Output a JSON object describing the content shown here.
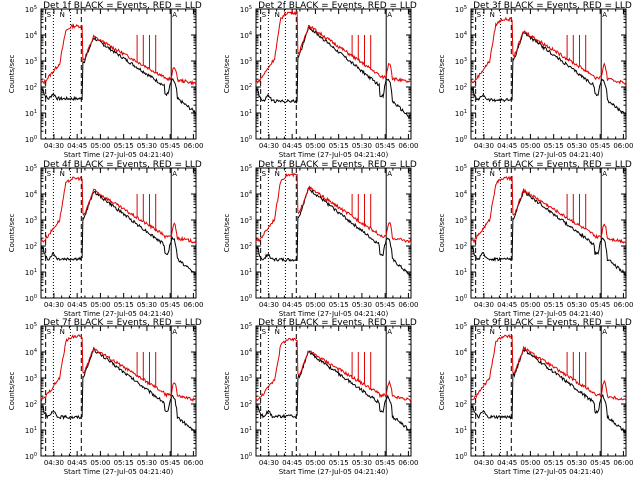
{
  "chart_data": [
    {
      "type": "line",
      "title": "Det 1f BLACK = Events, RED = LLD",
      "ylabel": "Counts/sec",
      "xlabel": "Start Time (27-Jul-05 04:21:40)",
      "x_ticks": [
        "04:30",
        "04:45",
        "05:00",
        "05:15",
        "05:30",
        "05:45",
        "06:00"
      ],
      "y_ticks": [
        "10^0",
        "10^1",
        "10^2",
        "10^3",
        "10^4",
        "10^5"
      ],
      "yscale": "log",
      "ylim": [
        1,
        100000
      ],
      "markers": {
        "s_label": "S",
        "n_label": "N",
        "a_label": "A"
      },
      "series": [
        {
          "name": "Events",
          "color": "#000000"
        },
        {
          "name": "LLD",
          "color": "#e00000"
        }
      ]
    },
    {
      "type": "line",
      "title": "Det 2f BLACK = Events, RED = LLD",
      "ylabel": "Counts/sec",
      "xlabel": "Start Time (27-Jul-05 04:21:40)",
      "x_ticks": [
        "04:30",
        "04:45",
        "05:00",
        "05:15",
        "05:30",
        "05:45",
        "06:00"
      ],
      "y_ticks": [
        "10^0",
        "10^1",
        "10^2",
        "10^3",
        "10^4",
        "10^5"
      ],
      "yscale": "log",
      "ylim": [
        1,
        100000
      ],
      "markers": {
        "s_label": "S",
        "n_label": "N",
        "a_label": "A"
      },
      "series": [
        {
          "name": "Events",
          "color": "#000000"
        },
        {
          "name": "LLD",
          "color": "#e00000"
        }
      ]
    },
    {
      "type": "line",
      "title": "Det 3f BLACK = Events, RED = LLD",
      "ylabel": "Counts/sec",
      "xlabel": "Start Time (27-Jul-05 04:21:40)",
      "x_ticks": [
        "04:30",
        "04:45",
        "05:00",
        "05:15",
        "05:30",
        "05:45",
        "06:00"
      ],
      "y_ticks": [
        "10^0",
        "10^1",
        "10^2",
        "10^3",
        "10^4",
        "10^5"
      ],
      "yscale": "log",
      "ylim": [
        1,
        100000
      ],
      "markers": {
        "s_label": "S",
        "n_label": "N",
        "a_label": "A"
      },
      "series": [
        {
          "name": "Events",
          "color": "#000000"
        },
        {
          "name": "LLD",
          "color": "#e00000"
        }
      ]
    },
    {
      "type": "line",
      "title": "Det 4f BLACK = Events, RED = LLD",
      "ylabel": "Counts/sec",
      "xlabel": "Start Time (27-Jul-05 04:21:40)",
      "x_ticks": [
        "04:30",
        "04:45",
        "05:00",
        "05:15",
        "05:30",
        "05:45",
        "06:00"
      ],
      "y_ticks": [
        "10^0",
        "10^1",
        "10^2",
        "10^3",
        "10^4",
        "10^5"
      ],
      "yscale": "log",
      "ylim": [
        1,
        100000
      ],
      "markers": {
        "s_label": "S",
        "n_label": "N",
        "a_label": "A"
      },
      "series": [
        {
          "name": "Events",
          "color": "#000000"
        },
        {
          "name": "LLD",
          "color": "#e00000"
        }
      ]
    },
    {
      "type": "line",
      "title": "Det 5f BLACK = Events, RED = LLD",
      "ylabel": "Counts/sec",
      "xlabel": "Start Time (27-Jul-05 04:21:40)",
      "x_ticks": [
        "04:30",
        "04:45",
        "05:00",
        "05:15",
        "05:30",
        "05:45",
        "06:00"
      ],
      "y_ticks": [
        "10^0",
        "10^1",
        "10^2",
        "10^3",
        "10^4",
        "10^5"
      ],
      "yscale": "log",
      "ylim": [
        1,
        100000
      ],
      "markers": {
        "s_label": "S",
        "n_label": "N",
        "a_label": "A"
      },
      "series": [
        {
          "name": "Events",
          "color": "#000000"
        },
        {
          "name": "LLD",
          "color": "#e00000"
        }
      ]
    },
    {
      "type": "line",
      "title": "Det 6f BLACK = Events, RED = LLD",
      "ylabel": "Counts/sec",
      "xlabel": "Start Time (27-Jul-05 04:21:40)",
      "x_ticks": [
        "04:30",
        "04:45",
        "05:00",
        "05:15",
        "05:30",
        "05:45",
        "06:00"
      ],
      "y_ticks": [
        "10^0",
        "10^1",
        "10^2",
        "10^3",
        "10^4",
        "10^5"
      ],
      "yscale": "log",
      "ylim": [
        1,
        100000
      ],
      "markers": {
        "s_label": "S",
        "n_label": "N",
        "a_label": "A"
      },
      "series": [
        {
          "name": "Events",
          "color": "#000000"
        },
        {
          "name": "LLD",
          "color": "#e00000"
        }
      ]
    },
    {
      "type": "line",
      "title": "Det 7f BLACK = Events, RED = LLD",
      "ylabel": "Counts/sec",
      "xlabel": "Start Time (27-Jul-05 04:21:40)",
      "x_ticks": [
        "04:30",
        "04:45",
        "05:00",
        "05:15",
        "05:30",
        "05:45",
        "06:00"
      ],
      "y_ticks": [
        "10^0",
        "10^1",
        "10^2",
        "10^3",
        "10^4",
        "10^5"
      ],
      "yscale": "log",
      "ylim": [
        1,
        100000
      ],
      "markers": {
        "s_label": "S",
        "n_label": "N",
        "a_label": "A"
      },
      "series": [
        {
          "name": "Events",
          "color": "#000000"
        },
        {
          "name": "LLD",
          "color": "#e00000"
        }
      ]
    },
    {
      "type": "line",
      "title": "Det 8f BLACK = Events, RED = LLD",
      "ylabel": "Counts/sec",
      "xlabel": "Start Time (27-Jul-05 04:21:40)",
      "x_ticks": [
        "04:30",
        "04:45",
        "05:00",
        "05:15",
        "05:30",
        "05:45",
        "06:00"
      ],
      "y_ticks": [
        "10^0",
        "10^1",
        "10^2",
        "10^3",
        "10^4",
        "10^5"
      ],
      "yscale": "log",
      "ylim": [
        1,
        100000
      ],
      "markers": {
        "s_label": "S",
        "n_label": "N",
        "a_label": "A"
      },
      "series": [
        {
          "name": "Events",
          "color": "#000000"
        },
        {
          "name": "LLD",
          "color": "#e00000"
        }
      ]
    },
    {
      "type": "line",
      "title": "Det 9f BLACK = Events, RED = LLD",
      "ylabel": "Counts/sec",
      "xlabel": "Start Time (27-Jul-05 04:21:40)",
      "x_ticks": [
        "04:30",
        "04:45",
        "05:00",
        "05:15",
        "05:30",
        "05:45",
        "06:00"
      ],
      "y_ticks": [
        "10^0",
        "10^1",
        "10^2",
        "10^3",
        "10^4",
        "10^5"
      ],
      "yscale": "log",
      "ylim": [
        1,
        100000
      ],
      "markers": {
        "s_label": "S",
        "n_label": "N",
        "a_label": "A"
      },
      "series": [
        {
          "name": "Events",
          "color": "#000000"
        },
        {
          "name": "LLD",
          "color": "#e00000"
        }
      ]
    }
  ]
}
